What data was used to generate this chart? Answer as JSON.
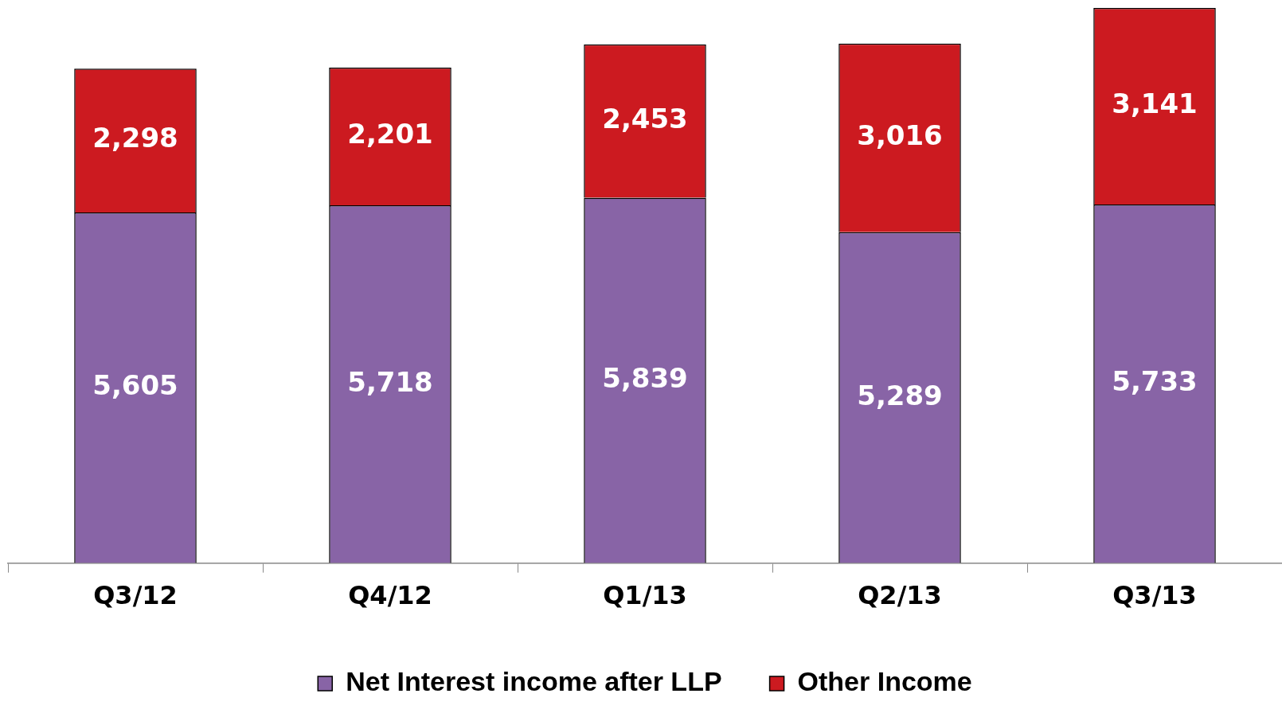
{
  "chart_data": {
    "type": "bar",
    "stacked": true,
    "categories": [
      "Q3/12",
      "Q4/12",
      "Q1/13",
      "Q2/13",
      "Q3/13"
    ],
    "series": [
      {
        "name": "Net Interest income after LLP",
        "color": "#8864a6",
        "values": [
          5605,
          5718,
          5839,
          5289,
          5733
        ],
        "value_labels": [
          "5,605",
          "5,718",
          "5,839",
          "5,289",
          "5,733"
        ]
      },
      {
        "name": "Other Income",
        "color": "#cc1a20",
        "values": [
          2298,
          2201,
          2453,
          3016,
          3141
        ],
        "value_labels": [
          "2,298",
          "2,201",
          "2,453",
          "3,016",
          "3,141"
        ]
      }
    ],
    "legend": "bottom",
    "grid": false
  }
}
